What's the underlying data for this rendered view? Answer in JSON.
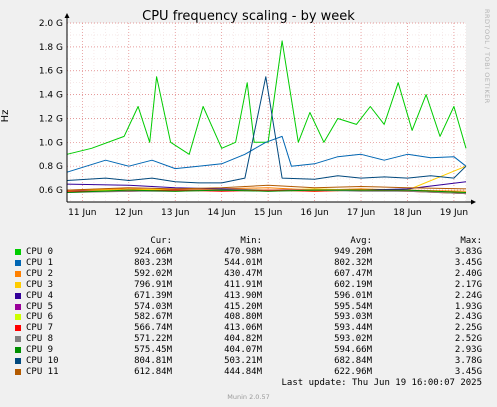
{
  "title": "CPU frequency scaling - by week",
  "watermark": "RRDTOOL / TOBI OETIKER",
  "footer": "Munin 2.0.57",
  "last_update": "Last update: Thu Jun 19 16:00:07 2025",
  "legend_headers": {
    "cur": "Cur:",
    "min": "Min:",
    "avg": "Avg:",
    "max": "Max:"
  },
  "legend_rows": [
    {
      "name": "CPU 0",
      "color": "#00cc00",
      "cur": "924.06M",
      "min": "470.98M",
      "avg": "949.20M",
      "max": "3.83G"
    },
    {
      "name": "CPU 1",
      "color": "#0066b3",
      "cur": "803.23M",
      "min": "544.01M",
      "avg": "802.32M",
      "max": "3.45G"
    },
    {
      "name": "CPU 2",
      "color": "#ff8000",
      "cur": "592.02M",
      "min": "430.47M",
      "avg": "607.47M",
      "max": "2.40G"
    },
    {
      "name": "CPU 3",
      "color": "#ffcc00",
      "cur": "796.91M",
      "min": "411.91M",
      "avg": "602.19M",
      "max": "2.17G"
    },
    {
      "name": "CPU 4",
      "color": "#330099",
      "cur": "671.39M",
      "min": "413.90M",
      "avg": "596.01M",
      "max": "2.24G"
    },
    {
      "name": "CPU 5",
      "color": "#990099",
      "cur": "574.03M",
      "min": "415.20M",
      "avg": "595.54M",
      "max": "1.93G"
    },
    {
      "name": "CPU 6",
      "color": "#ccff00",
      "cur": "582.67M",
      "min": "408.80M",
      "avg": "593.03M",
      "max": "2.43G"
    },
    {
      "name": "CPU 7",
      "color": "#ff0000",
      "cur": "566.74M",
      "min": "413.06M",
      "avg": "593.44M",
      "max": "2.25G"
    },
    {
      "name": "CPU 8",
      "color": "#808080",
      "cur": "571.22M",
      "min": "404.82M",
      "avg": "593.02M",
      "max": "2.52G"
    },
    {
      "name": "CPU 9",
      "color": "#008f00",
      "cur": "575.45M",
      "min": "404.07M",
      "avg": "594.66M",
      "max": "2.93G"
    },
    {
      "name": "CPU 10",
      "color": "#00487d",
      "cur": "804.81M",
      "min": "503.21M",
      "avg": "682.84M",
      "max": "3.78G"
    },
    {
      "name": "CPU 11",
      "color": "#b35a00",
      "cur": "612.84M",
      "min": "444.84M",
      "avg": "622.96M",
      "max": "3.45G"
    }
  ],
  "chart_data": {
    "type": "line",
    "title": "CPU frequency scaling - by week",
    "ylabel": "Hz",
    "xlabel": "",
    "ylim": [
      0.5,
      2.0
    ],
    "y_unit": "GHz",
    "y_ticks": [
      "0.6 G",
      "0.8 G",
      "1.0 G",
      "1.2 G",
      "1.4 G",
      "1.6 G",
      "1.8 G",
      "2.0 G"
    ],
    "y_tick_values": [
      0.6,
      0.8,
      1.0,
      1.2,
      1.4,
      1.6,
      1.8,
      2.0
    ],
    "x_ticks": [
      "11 Jun",
      "12 Jun",
      "13 Jun",
      "14 Jun",
      "15 Jun",
      "16 Jun",
      "17 Jun",
      "18 Jun",
      "19 Jun"
    ],
    "x_tick_days": [
      0,
      1,
      2,
      3,
      4,
      5,
      6,
      7,
      8
    ],
    "x_range_days": [
      -0.33,
      8.26
    ],
    "grid": true,
    "series": [
      {
        "name": "CPU 0",
        "color": "#00cc00",
        "x": [
          -0.33,
          0.2,
          0.9,
          1.2,
          1.45,
          1.6,
          1.9,
          2.3,
          2.6,
          3.0,
          3.3,
          3.55,
          3.7,
          4.0,
          4.3,
          4.65,
          4.9,
          5.2,
          5.5,
          5.9,
          6.2,
          6.5,
          6.8,
          7.1,
          7.4,
          7.7,
          8.0,
          8.26
        ],
        "values": [
          0.9,
          0.95,
          1.05,
          1.3,
          1.0,
          1.55,
          1.0,
          0.9,
          1.3,
          0.95,
          1.0,
          1.5,
          1.0,
          1.0,
          1.85,
          1.0,
          1.25,
          1.0,
          1.2,
          1.15,
          1.3,
          1.15,
          1.5,
          1.1,
          1.4,
          1.05,
          1.3,
          0.95
        ]
      },
      {
        "name": "CPU 1",
        "color": "#0066b3",
        "x": [
          -0.33,
          0.5,
          1.0,
          1.5,
          2.0,
          2.5,
          3.0,
          3.5,
          3.95,
          4.3,
          4.5,
          5.0,
          5.5,
          6.0,
          6.5,
          7.0,
          7.5,
          8.0,
          8.26
        ],
        "values": [
          0.75,
          0.85,
          0.8,
          0.85,
          0.78,
          0.8,
          0.82,
          0.9,
          1.0,
          1.05,
          0.8,
          0.82,
          0.88,
          0.9,
          0.85,
          0.9,
          0.87,
          0.88,
          0.8
        ]
      },
      {
        "name": "CPU 2",
        "color": "#ff8000",
        "x": [
          -0.33,
          1.0,
          2.0,
          3.0,
          4.0,
          5.0,
          6.0,
          7.0,
          8.26
        ],
        "values": [
          0.6,
          0.61,
          0.6,
          0.61,
          0.62,
          0.6,
          0.61,
          0.6,
          0.59
        ]
      },
      {
        "name": "CPU 3",
        "color": "#ffcc00",
        "x": [
          -0.33,
          1.0,
          2.0,
          3.0,
          4.0,
          5.0,
          6.0,
          7.0,
          8.26
        ],
        "values": [
          0.6,
          0.6,
          0.61,
          0.6,
          0.6,
          0.61,
          0.6,
          0.6,
          0.8
        ]
      },
      {
        "name": "CPU 4",
        "color": "#330099",
        "x": [
          -0.33,
          1.0,
          2.0,
          3.0,
          4.0,
          5.0,
          6.0,
          7.0,
          8.26
        ],
        "values": [
          0.65,
          0.64,
          0.62,
          0.61,
          0.6,
          0.6,
          0.6,
          0.61,
          0.67
        ]
      },
      {
        "name": "CPU 5",
        "color": "#990099",
        "x": [
          -0.33,
          1.0,
          2.0,
          3.0,
          4.0,
          5.0,
          6.0,
          7.0,
          8.26
        ],
        "values": [
          0.6,
          0.59,
          0.6,
          0.6,
          0.6,
          0.6,
          0.6,
          0.6,
          0.57
        ]
      },
      {
        "name": "CPU 6",
        "color": "#ccff00",
        "x": [
          -0.33,
          1.0,
          2.0,
          3.0,
          4.0,
          5.0,
          6.0,
          7.0,
          8.26
        ],
        "values": [
          0.59,
          0.6,
          0.59,
          0.6,
          0.6,
          0.59,
          0.6,
          0.59,
          0.58
        ]
      },
      {
        "name": "CPU 7",
        "color": "#ff0000",
        "x": [
          -0.33,
          1.0,
          2.0,
          3.0,
          4.0,
          5.0,
          6.0,
          7.0,
          8.26
        ],
        "values": [
          0.59,
          0.59,
          0.6,
          0.59,
          0.6,
          0.59,
          0.6,
          0.59,
          0.57
        ]
      },
      {
        "name": "CPU 8",
        "color": "#808080",
        "x": [
          -0.33,
          1.0,
          2.0,
          3.0,
          4.0,
          5.0,
          6.0,
          7.0,
          8.26
        ],
        "values": [
          0.58,
          0.59,
          0.59,
          0.6,
          0.59,
          0.6,
          0.59,
          0.59,
          0.57
        ]
      },
      {
        "name": "CPU 9",
        "color": "#008f00",
        "x": [
          -0.33,
          1.0,
          2.0,
          3.0,
          4.0,
          5.0,
          6.0,
          7.0,
          8.26
        ],
        "values": [
          0.58,
          0.6,
          0.59,
          0.6,
          0.59,
          0.6,
          0.6,
          0.6,
          0.58
        ]
      },
      {
        "name": "CPU 10",
        "color": "#00487d",
        "x": [
          -0.33,
          0.5,
          1.0,
          1.5,
          2.0,
          2.5,
          3.0,
          3.5,
          3.95,
          4.3,
          5.0,
          5.5,
          6.0,
          6.5,
          7.0,
          7.5,
          8.0,
          8.26
        ],
        "values": [
          0.68,
          0.7,
          0.68,
          0.7,
          0.67,
          0.66,
          0.66,
          0.7,
          1.55,
          0.7,
          0.69,
          0.72,
          0.7,
          0.71,
          0.7,
          0.72,
          0.7,
          0.8
        ]
      },
      {
        "name": "CPU 11",
        "color": "#b35a00",
        "x": [
          -0.33,
          1.0,
          2.0,
          3.0,
          4.0,
          5.0,
          6.0,
          7.0,
          8.26
        ],
        "values": [
          0.6,
          0.62,
          0.61,
          0.62,
          0.64,
          0.62,
          0.63,
          0.62,
          0.61
        ]
      }
    ]
  }
}
